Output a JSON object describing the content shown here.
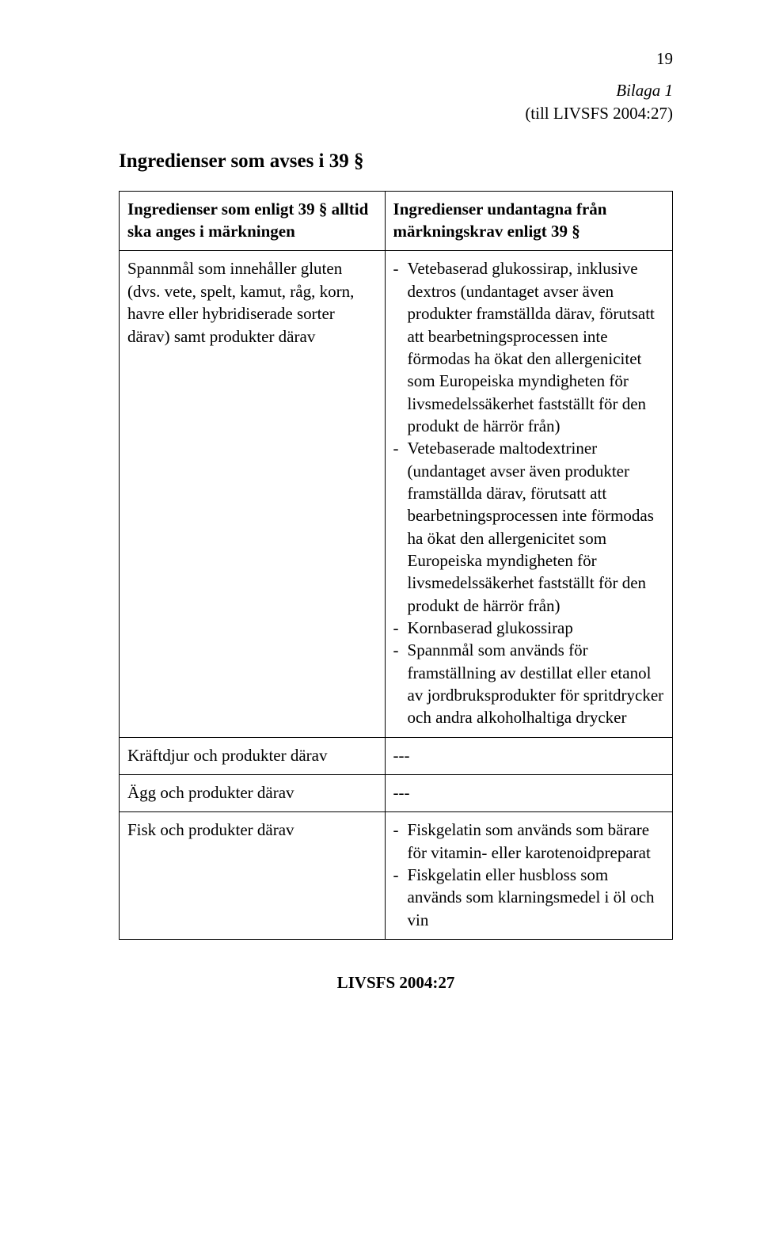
{
  "page_number": "19",
  "header": {
    "line1": "Bilaga 1",
    "line2": "(till LIVSFS 2004:27)"
  },
  "section_title": "Ingredienser som avses i 39 §",
  "table": {
    "columns": [
      "Ingredienser som enligt 39 § alltid ska anges i märkningen",
      "Ingredienser undantagna från märkningskrav enligt 39 §"
    ],
    "rows": [
      {
        "left": "Spannmål som innehåller gluten (dvs. vete, spelt, kamut, råg, korn, havre eller hybridiserade sorter därav) samt produkter därav",
        "right_items": [
          "Vetebaserad glukossirap, inklusive dextros (undantaget avser även produkter framställda därav, förutsatt att bearbetningsprocessen inte förmodas ha ökat den allergenicitet som Europeiska myndigheten för livsmedelssäkerhet fastställt för den produkt de härrör från)",
          "Vetebaserade maltodextriner (undantaget avser även produkter framställda därav, förutsatt att bearbetningsprocessen inte förmodas ha ökat den allergenicitet som Europeiska myndigheten för livsmedelssäkerhet fastställt för den produkt de härrör från)",
          "Kornbaserad glukossirap",
          "Spannmål som används för framställning av destillat eller etanol av jordbruksprodukter för spritdrycker och andra alkoholhaltiga drycker"
        ]
      },
      {
        "left": "Kräftdjur och produkter därav",
        "right_plain": "---"
      },
      {
        "left": "Ägg och produkter därav",
        "right_plain": "---"
      },
      {
        "left": "Fisk och produkter därav",
        "right_items": [
          "Fiskgelatin som används som bärare för vitamin- eller karotenoidpreparat",
          "Fiskgelatin eller husbloss som används som klarningsmedel i öl och vin"
        ]
      }
    ]
  },
  "footer": "LIVSFS 2004:27"
}
